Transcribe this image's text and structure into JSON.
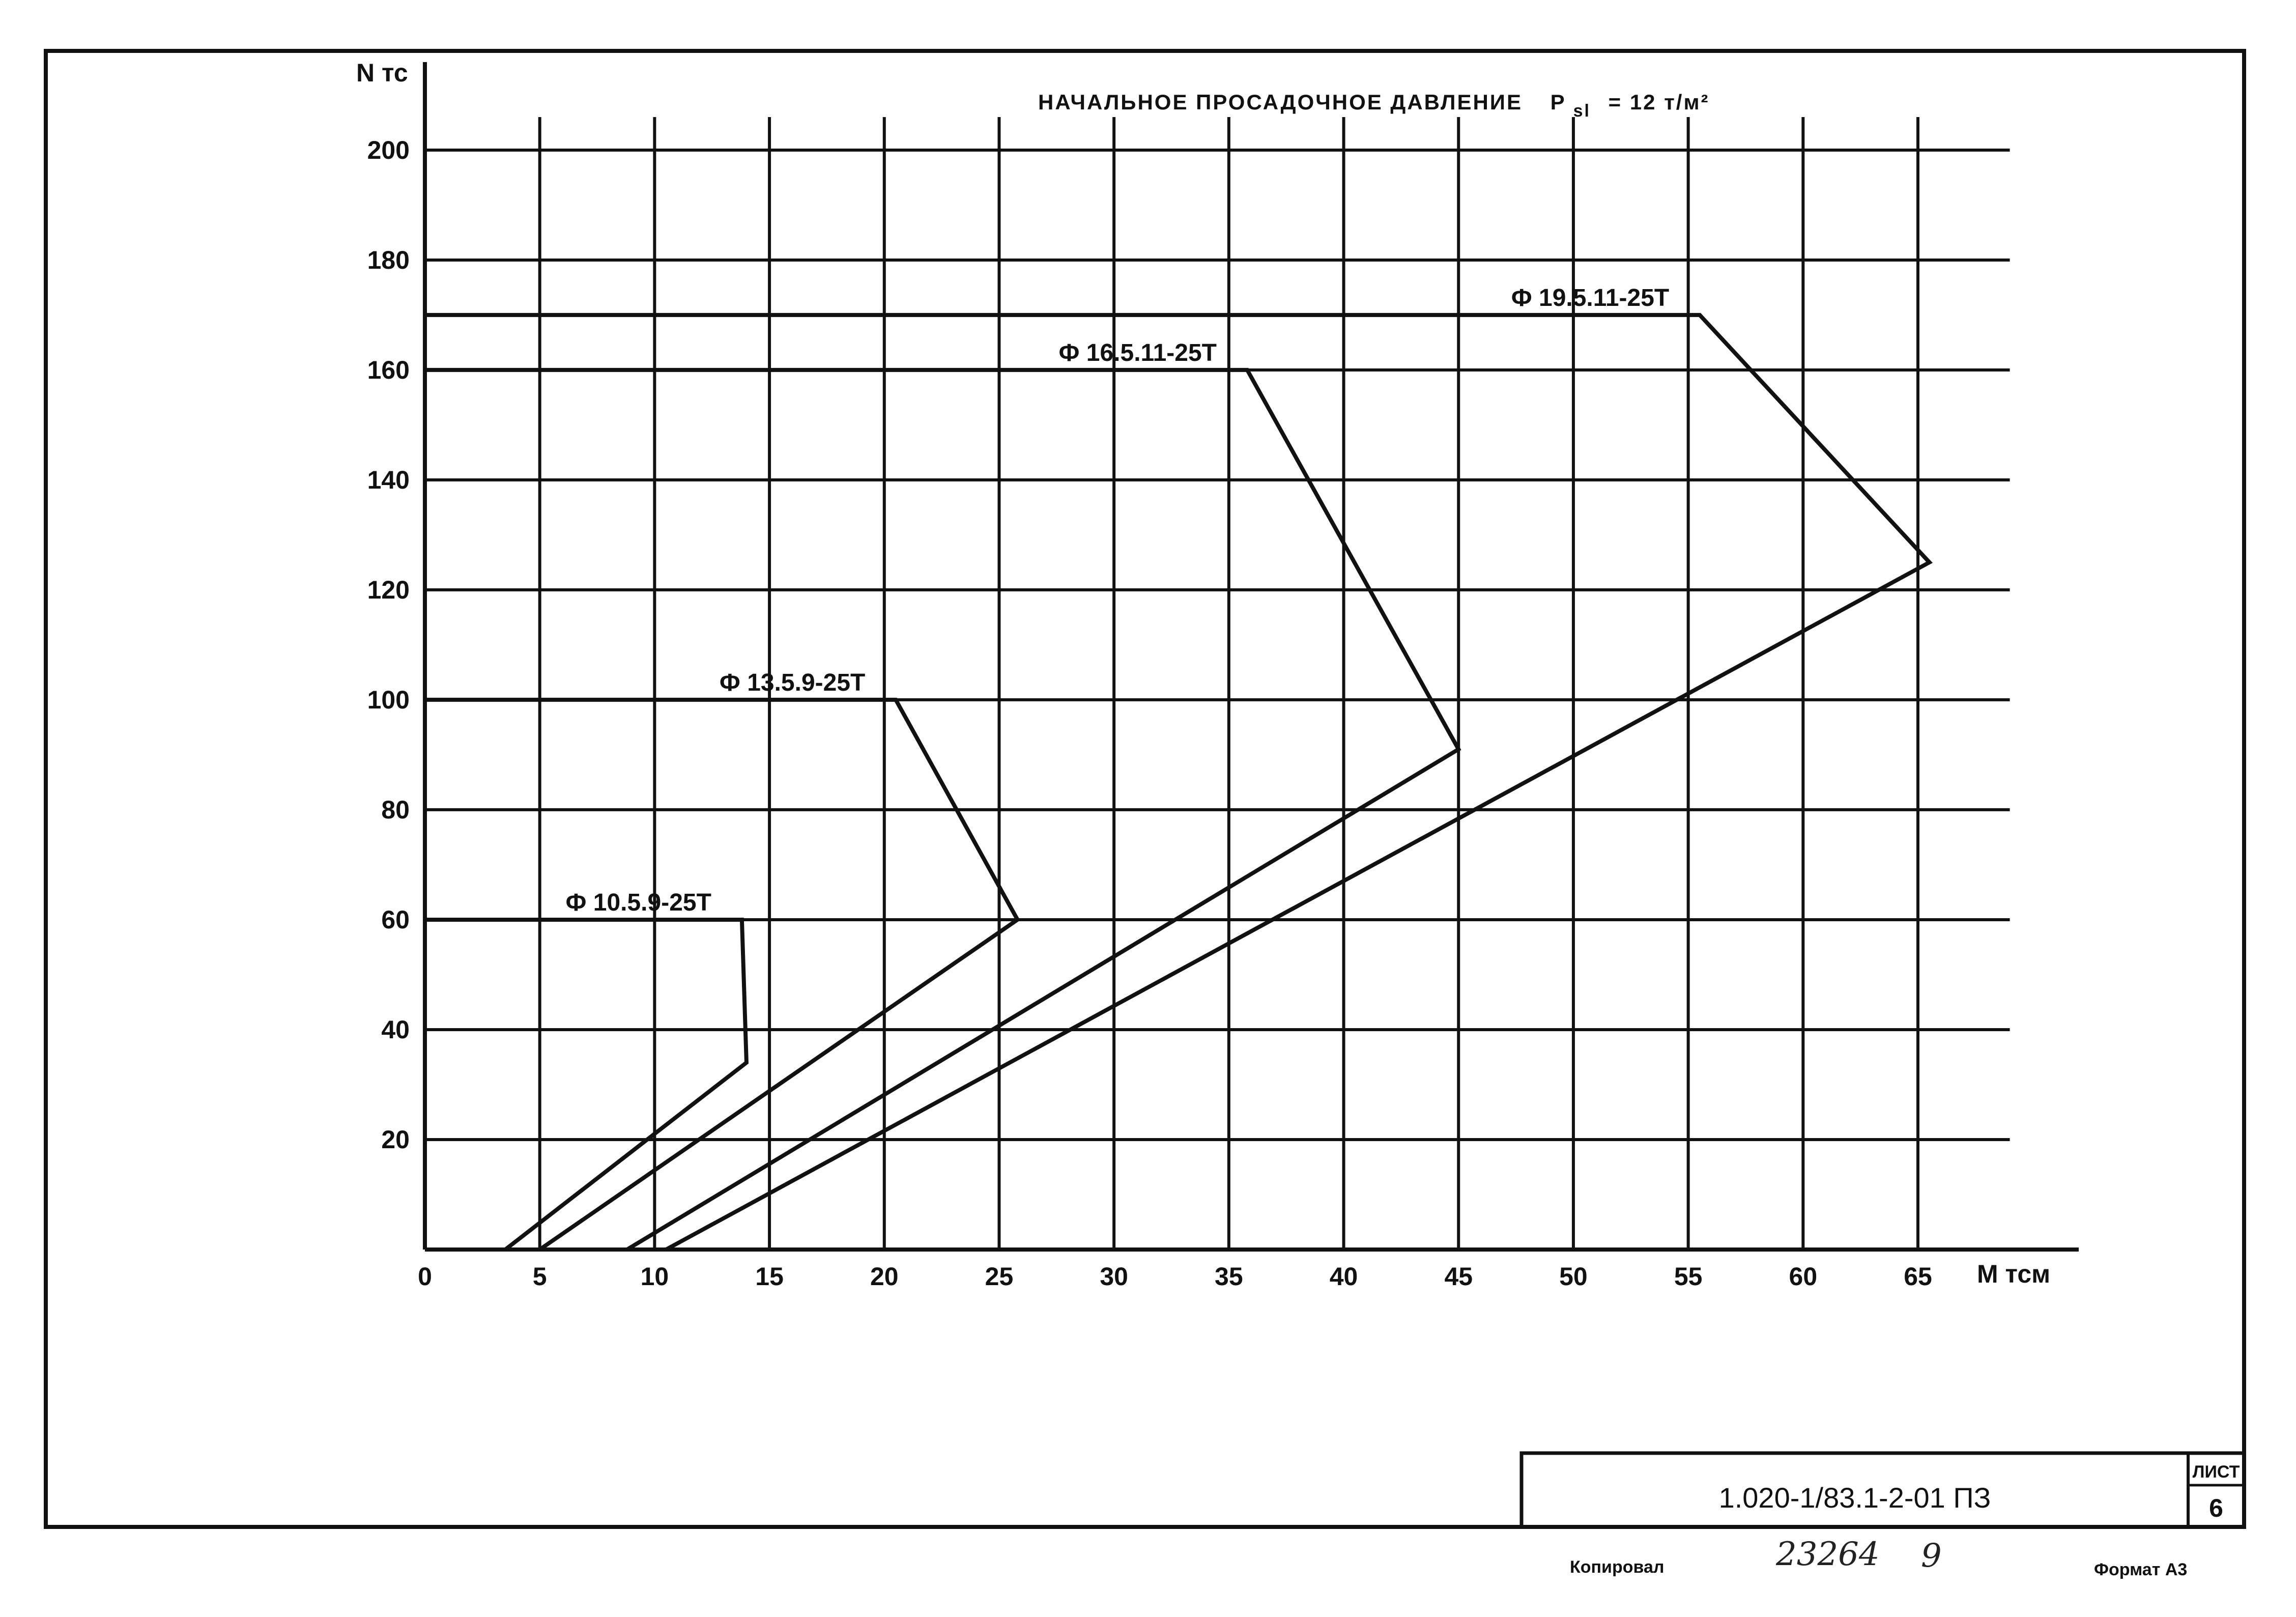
{
  "chart_data": {
    "type": "line",
    "title_prefix": "НАЧАЛЬНОЕ ПРОСАДОЧНОЕ ДАВЛЕНИЕ",
    "title_symbol": "P",
    "title_subscript": "sl",
    "title_suffix": "= 12 т/м²",
    "ylabel": "N тс",
    "xlabel": "M тсм",
    "xlim": [
      0,
      72
    ],
    "ylim": [
      0,
      216
    ],
    "x_ticks": [
      0,
      5,
      10,
      15,
      20,
      25,
      30,
      35,
      40,
      45,
      50,
      55,
      60,
      65
    ],
    "y_ticks": [
      20,
      40,
      60,
      80,
      100,
      120,
      140,
      160,
      180,
      200
    ],
    "grid": true,
    "series": [
      {
        "name": "Ф 10.5.9-25Т",
        "x": [
          0,
          13.8,
          14.0,
          3.5
        ],
        "y": [
          60,
          60,
          34,
          0
        ]
      },
      {
        "name": "Ф 13.5.9-25Т",
        "x": [
          0,
          20.5,
          25.8,
          5.0
        ],
        "y": [
          100,
          100,
          60,
          0
        ]
      },
      {
        "name": "Ф 16.5.11-25Т",
        "x": [
          0,
          35.8,
          45.0,
          8.8
        ],
        "y": [
          160,
          160,
          91,
          0
        ]
      },
      {
        "name": "Ф 19.5.11-25Т",
        "x": [
          0,
          55.5,
          65.5,
          10.5
        ],
        "y": [
          170,
          170,
          125,
          0
        ]
      }
    ]
  },
  "stamp": {
    "document_code": "1.020-1/83.1-2-01 ПЗ",
    "sheet_label": "ЛИСТ",
    "sheet_number": "6",
    "copied_label": "Копировал",
    "inventory_number": "23264",
    "inventory_suffix": "9",
    "format_label": "Формат А3"
  }
}
